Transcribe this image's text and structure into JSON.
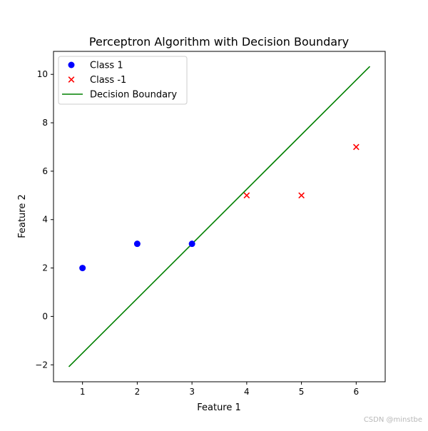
{
  "chart_data": {
    "type": "scatter",
    "title": "Perceptron Algorithm with Decision Boundary",
    "xlabel": "Feature 1",
    "ylabel": "Feature 2",
    "xlim": [
      0.47,
      6.53
    ],
    "ylim": [
      -2.7,
      10.95
    ],
    "xticks": [
      1,
      2,
      3,
      4,
      5,
      6
    ],
    "xtick_labels": [
      "1",
      "2",
      "3",
      "4",
      "5",
      "6"
    ],
    "yticks": [
      -2,
      0,
      2,
      4,
      6,
      8,
      10
    ],
    "ytick_labels": [
      "−2",
      "0",
      "2",
      "4",
      "6",
      "8",
      "10"
    ],
    "grid": false,
    "legend_position": "top-left",
    "series": [
      {
        "name": "Class 1",
        "kind": "scatter",
        "marker": "circle",
        "color": "#0000ff",
        "points": [
          [
            1,
            2
          ],
          [
            2,
            3
          ],
          [
            3,
            3
          ]
        ]
      },
      {
        "name": "Class -1",
        "kind": "scatter",
        "marker": "x",
        "color": "#ff0000",
        "points": [
          [
            4,
            5
          ],
          [
            5,
            5
          ],
          [
            6,
            7
          ]
        ]
      },
      {
        "name": "Decision Boundary",
        "kind": "line",
        "color": "#008000",
        "points": [
          [
            0.75,
            -2.08
          ],
          [
            6.25,
            10.33
          ]
        ]
      }
    ]
  },
  "watermark": "CSDN @minstbe"
}
